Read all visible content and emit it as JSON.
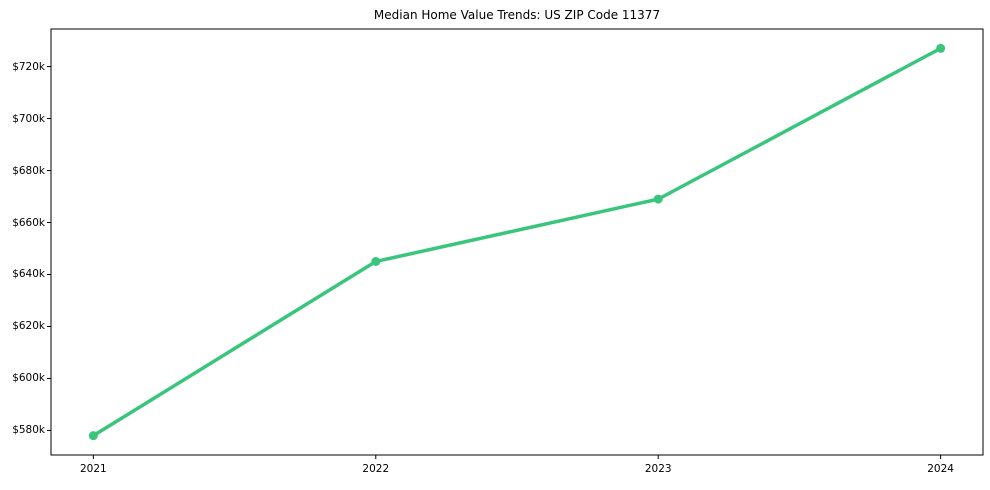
{
  "chart_data": {
    "type": "line",
    "title": "Median Home Value Trends: US ZIP Code 11377",
    "series": [
      {
        "name": "Median home value",
        "x": [
          2021,
          2022,
          2023,
          2024
        ],
        "values": [
          578000,
          645000,
          669000,
          727000
        ]
      }
    ],
    "xlabel": "",
    "ylabel": "",
    "x_ticks": [
      {
        "value": 2021,
        "label": "2021"
      },
      {
        "value": 2022,
        "label": "2022"
      },
      {
        "value": 2023,
        "label": "2023"
      },
      {
        "value": 2024,
        "label": "2024"
      }
    ],
    "y_ticks": [
      {
        "value": 580000,
        "label": "$580k"
      },
      {
        "value": 600000,
        "label": "$600k"
      },
      {
        "value": 620000,
        "label": "$620k"
      },
      {
        "value": 640000,
        "label": "$640k"
      },
      {
        "value": 660000,
        "label": "$660k"
      },
      {
        "value": 680000,
        "label": "$680k"
      },
      {
        "value": 700000,
        "label": "$700k"
      },
      {
        "value": 720000,
        "label": "$720k"
      }
    ],
    "xlim": [
      2020.85,
      2024.15
    ],
    "ylim": [
      570550,
      734450
    ],
    "grid": false,
    "legend": null,
    "colors": {
      "line": "#3ac57c",
      "marker": "#3ac57c",
      "spine": "#000000",
      "text": "#000000",
      "background": "#ffffff"
    }
  }
}
